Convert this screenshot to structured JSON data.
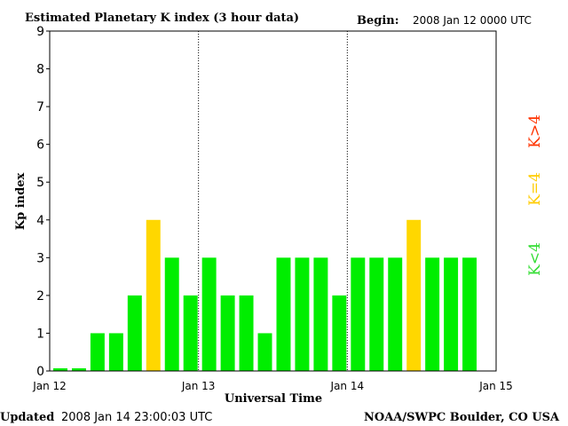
{
  "header": {
    "title": "Estimated Planetary K index (3 hour data)",
    "begin_label": "Begin:",
    "begin_value": "2008 Jan 12 0000 UTC"
  },
  "footer": {
    "updated_label": "Updated",
    "updated_value": "2008 Jan 14 23:00:03 UTC",
    "source": "NOAA/SWPC Boulder, CO USA"
  },
  "legend": {
    "quiet": "K<4",
    "moderate": "K=4",
    "storm": "K>4"
  },
  "colors": {
    "quiet": "#00ee00",
    "moderate": "#ffd700",
    "storm": "#ff2200",
    "axis": "#000000",
    "day_divider": "#000000"
  },
  "chart_data": {
    "type": "bar",
    "title": "Estimated Planetary K index (3 hour data)",
    "xlabel": "Universal Time",
    "ylabel": "Kp index",
    "ylim": [
      0,
      9
    ],
    "yticks": [
      "0",
      "1",
      "2",
      "3",
      "4",
      "5",
      "6",
      "7",
      "8",
      "9"
    ],
    "xticks": [
      "Jan 12",
      "Jan 13",
      "Jan 14",
      "Jan 15"
    ],
    "interval_hours": 3,
    "grid": false,
    "day_dividers": [
      "Jan 13",
      "Jan 14"
    ],
    "values": [
      0,
      0,
      1,
      1,
      2,
      4,
      3,
      2,
      3,
      2,
      2,
      1,
      3,
      3,
      3,
      2,
      3,
      3,
      3,
      4,
      3,
      3,
      3
    ]
  }
}
